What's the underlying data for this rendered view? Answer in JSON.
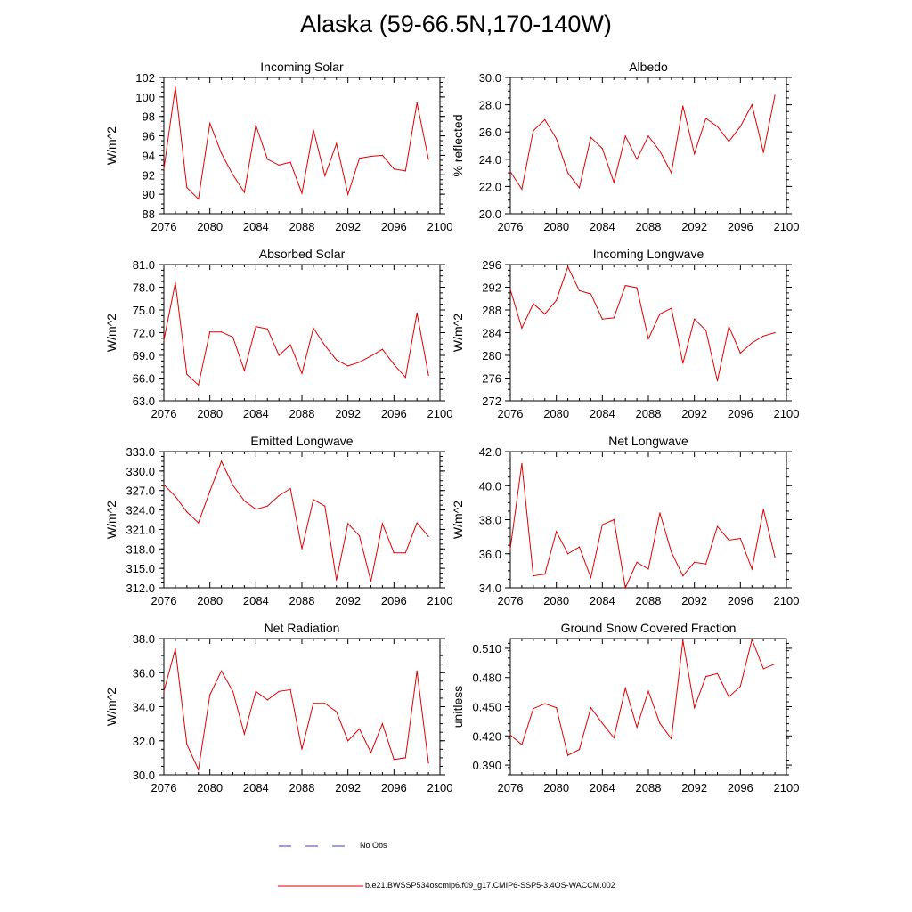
{
  "title": "Alaska (59-66.5N,170-140W)",
  "legend": {
    "obs_label": "No Obs",
    "model_label": "b.e21.BWSSP534oscmip6.f09_g17.CMIP6-SSP5-3.4OS-WACCM.002",
    "obs_color": "#3b3bd6",
    "model_color": "#e00000"
  },
  "chart_data": [
    {
      "type": "line",
      "title": "Incoming Solar",
      "ylabel": "W/m^2",
      "x": [
        2076,
        2077,
        2078,
        2079,
        2080,
        2081,
        2082,
        2083,
        2084,
        2085,
        2086,
        2087,
        2088,
        2089,
        2090,
        2091,
        2092,
        2093,
        2094,
        2095,
        2096,
        2097,
        2098,
        2099
      ],
      "values": [
        92.6,
        101.0,
        90.7,
        89.5,
        97.3,
        94.2,
        92.0,
        90.2,
        97.1,
        93.6,
        93.0,
        93.3,
        90.1,
        96.6,
        91.9,
        95.2,
        90.0,
        93.7,
        93.9,
        94.0,
        92.6,
        92.4,
        99.4,
        93.6
      ],
      "xlim": [
        2076,
        2100
      ],
      "ylim": [
        88,
        102
      ],
      "xticks": [
        "2076",
        "2080",
        "2084",
        "2088",
        "2092",
        "2096",
        "2100"
      ],
      "yticks": [
        "88",
        "90",
        "92",
        "94",
        "96",
        "98",
        "100",
        "102"
      ]
    },
    {
      "type": "line",
      "title": "Albedo",
      "ylabel": "% reflected",
      "x": [
        2076,
        2077,
        2078,
        2079,
        2080,
        2081,
        2082,
        2083,
        2084,
        2085,
        2086,
        2087,
        2088,
        2089,
        2090,
        2091,
        2092,
        2093,
        2094,
        2095,
        2096,
        2097,
        2098,
        2099
      ],
      "values": [
        23.1,
        21.8,
        26.1,
        26.9,
        25.5,
        23.0,
        21.9,
        25.6,
        24.8,
        22.3,
        25.7,
        24.0,
        25.7,
        24.6,
        23.0,
        27.9,
        24.4,
        27.0,
        26.4,
        25.3,
        26.4,
        28.0,
        24.5,
        28.7
      ],
      "xlim": [
        2076,
        2100
      ],
      "ylim": [
        20,
        30
      ],
      "xticks": [
        "2076",
        "2080",
        "2084",
        "2088",
        "2092",
        "2096",
        "2100"
      ],
      "yticks": [
        "20.0",
        "22.0",
        "24.0",
        "26.0",
        "28.0",
        "30.0"
      ]
    },
    {
      "type": "line",
      "title": "Absorbed Solar",
      "ylabel": "W/m^2",
      "x": [
        2076,
        2077,
        2078,
        2079,
        2080,
        2081,
        2082,
        2083,
        2084,
        2085,
        2086,
        2087,
        2088,
        2089,
        2090,
        2091,
        2092,
        2093,
        2094,
        2095,
        2096,
        2097,
        2098,
        2099
      ],
      "values": [
        71.0,
        78.6,
        66.5,
        65.1,
        72.1,
        72.1,
        71.4,
        67.0,
        72.8,
        72.5,
        69.0,
        70.4,
        66.6,
        72.6,
        70.3,
        68.4,
        67.6,
        68.1,
        68.9,
        69.8,
        67.8,
        66.1,
        74.6,
        66.4
      ],
      "xlim": [
        2076,
        2100
      ],
      "ylim": [
        63,
        81
      ],
      "xticks": [
        "2076",
        "2080",
        "2084",
        "2088",
        "2092",
        "2096",
        "2100"
      ],
      "yticks": [
        "63.0",
        "66.0",
        "69.0",
        "72.0",
        "75.0",
        "78.0",
        "81.0"
      ]
    },
    {
      "type": "line",
      "title": "Incoming Longwave",
      "ylabel": "W/m^2",
      "x": [
        2076,
        2077,
        2078,
        2079,
        2080,
        2081,
        2082,
        2083,
        2084,
        2085,
        2086,
        2087,
        2088,
        2089,
        2090,
        2091,
        2092,
        2093,
        2094,
        2095,
        2096,
        2097,
        2098,
        2099
      ],
      "values": [
        291.6,
        284.8,
        289.1,
        287.3,
        289.7,
        295.6,
        291.4,
        290.8,
        286.4,
        286.6,
        292.3,
        291.9,
        282.9,
        287.3,
        288.3,
        278.6,
        286.4,
        284.4,
        275.5,
        285.1,
        280.4,
        282.2,
        283.4,
        284.0
      ],
      "xlim": [
        2076,
        2100
      ],
      "ylim": [
        272,
        296
      ],
      "xticks": [
        "2076",
        "2080",
        "2084",
        "2088",
        "2092",
        "2096",
        "2100"
      ],
      "yticks": [
        "272",
        "276",
        "280",
        "284",
        "288",
        "292",
        "296"
      ]
    },
    {
      "type": "line",
      "title": "Emitted Longwave",
      "ylabel": "W/m^2",
      "x": [
        2076,
        2077,
        2078,
        2079,
        2080,
        2081,
        2082,
        2083,
        2084,
        2085,
        2086,
        2087,
        2088,
        2089,
        2090,
        2091,
        2092,
        2093,
        2094,
        2095,
        2096,
        2097,
        2098,
        2099
      ],
      "values": [
        327.9,
        326.1,
        323.7,
        322.0,
        326.9,
        331.5,
        327.8,
        325.4,
        324.1,
        324.6,
        326.2,
        327.3,
        318.0,
        325.6,
        324.6,
        313.2,
        321.9,
        320.0,
        313.0,
        321.9,
        317.4,
        317.4,
        322.0,
        319.9
      ],
      "xlim": [
        2076,
        2100
      ],
      "ylim": [
        312,
        333
      ],
      "xticks": [
        "2076",
        "2080",
        "2084",
        "2088",
        "2092",
        "2096",
        "2100"
      ],
      "yticks": [
        "312.0",
        "315.0",
        "318.0",
        "321.0",
        "324.0",
        "327.0",
        "330.0",
        "333.0"
      ]
    },
    {
      "type": "line",
      "title": "Net Longwave",
      "ylabel": "W/m^2",
      "x": [
        2076,
        2077,
        2078,
        2079,
        2080,
        2081,
        2082,
        2083,
        2084,
        2085,
        2086,
        2087,
        2088,
        2089,
        2090,
        2091,
        2092,
        2093,
        2094,
        2095,
        2096,
        2097,
        2098,
        2099
      ],
      "values": [
        36.3,
        41.3,
        34.7,
        34.8,
        37.3,
        36.0,
        36.4,
        34.6,
        37.7,
        38.0,
        34.0,
        35.5,
        35.1,
        38.4,
        36.1,
        34.7,
        35.5,
        35.4,
        37.6,
        36.8,
        36.9,
        35.1,
        38.6,
        35.8
      ],
      "xlim": [
        2076,
        2100
      ],
      "ylim": [
        34,
        42
      ],
      "xticks": [
        "2076",
        "2080",
        "2084",
        "2088",
        "2092",
        "2096",
        "2100"
      ],
      "yticks": [
        "34.0",
        "36.0",
        "38.0",
        "40.0",
        "42.0"
      ]
    },
    {
      "type": "line",
      "title": "Net Radiation",
      "ylabel": "W/m^2",
      "x": [
        2076,
        2077,
        2078,
        2079,
        2080,
        2081,
        2082,
        2083,
        2084,
        2085,
        2086,
        2087,
        2088,
        2089,
        2090,
        2091,
        2092,
        2093,
        2094,
        2095,
        2096,
        2097,
        2098,
        2099
      ],
      "values": [
        34.9,
        37.4,
        31.8,
        30.3,
        34.7,
        36.1,
        34.9,
        32.4,
        34.9,
        34.4,
        34.9,
        35.0,
        31.5,
        34.2,
        34.2,
        33.7,
        32.0,
        32.7,
        31.3,
        33.0,
        30.9,
        31.0,
        36.1,
        30.7
      ],
      "xlim": [
        2076,
        2100
      ],
      "ylim": [
        30,
        38
      ],
      "xticks": [
        "2076",
        "2080",
        "2084",
        "2088",
        "2092",
        "2096",
        "2100"
      ],
      "yticks": [
        "30.0",
        "32.0",
        "34.0",
        "36.0",
        "38.0"
      ]
    },
    {
      "type": "line",
      "title": "Ground Snow Covered Fraction",
      "ylabel": "unitless",
      "x": [
        2076,
        2077,
        2078,
        2079,
        2080,
        2081,
        2082,
        2083,
        2084,
        2085,
        2086,
        2087,
        2088,
        2089,
        2090,
        2091,
        2092,
        2093,
        2094,
        2095,
        2096,
        2097,
        2098,
        2099
      ],
      "values": [
        0.421,
        0.411,
        0.448,
        0.453,
        0.449,
        0.4,
        0.406,
        0.449,
        0.433,
        0.418,
        0.469,
        0.429,
        0.466,
        0.433,
        0.417,
        0.518,
        0.449,
        0.481,
        0.484,
        0.46,
        0.471,
        0.519,
        0.489,
        0.494
      ],
      "xlim": [
        2076,
        2100
      ],
      "ylim": [
        0.38,
        0.52
      ],
      "xticks": [
        "2076",
        "2080",
        "2084",
        "2088",
        "2092",
        "2096",
        "2100"
      ],
      "yticks": [
        "0.390",
        "0.420",
        "0.450",
        "0.480",
        "0.510"
      ]
    }
  ]
}
